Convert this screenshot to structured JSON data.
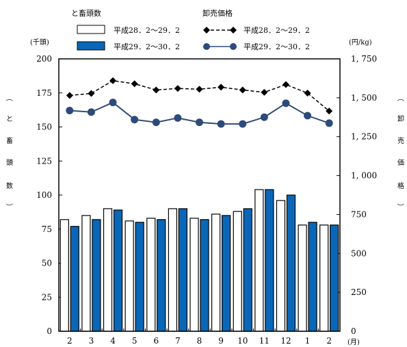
{
  "chart_data": {
    "type": "bar+line",
    "categories": [
      "2",
      "3",
      "4",
      "5",
      "6",
      "7",
      "8",
      "9",
      "10",
      "11",
      "12",
      "1",
      "2"
    ],
    "x_unit": "(月)",
    "left_axis": {
      "unit": "(千頭)",
      "label_chars": [
        "（",
        "と",
        "畜",
        "頭",
        "数",
        "）"
      ],
      "ylim": [
        0,
        200
      ],
      "ticks": [
        "0",
        "25",
        "50",
        "75",
        "100",
        "125",
        "150",
        "175",
        "200"
      ]
    },
    "right_axis": {
      "unit": "(円/kg)",
      "label_chars": [
        "（",
        "卸",
        "売",
        "価",
        "格",
        "）"
      ],
      "ylim": [
        0,
        1750
      ],
      "ticks": [
        "0",
        "250",
        "500",
        "750",
        "1, 000",
        "1, 250",
        "1, 500",
        "1, 750"
      ]
    },
    "bar_group_title": "と畜頭数",
    "line_group_title": "卸売価格",
    "bar_series": [
      {
        "name": "平成28．2～29．2",
        "color": "#ffffff",
        "values": [
          82,
          85,
          90,
          81,
          83,
          90,
          83,
          86,
          88,
          104,
          96,
          78,
          78
        ]
      },
      {
        "name": "平成29．2～30．2",
        "color": "#0a67b8",
        "values": [
          77,
          82,
          89,
          80,
          82,
          90,
          82,
          85,
          90,
          104,
          100,
          80,
          78
        ]
      }
    ],
    "line_series": [
      {
        "name": "平成28．2～29．2",
        "color": "#000000",
        "dashed": true,
        "marker": "diamond",
        "values": [
          1515,
          1528,
          1610,
          1590,
          1550,
          1560,
          1555,
          1568,
          1550,
          1535,
          1585,
          1530,
          1415
        ]
      },
      {
        "name": "平成29．2～30．2",
        "color": "#2d4b7a",
        "dashed": false,
        "marker": "circle",
        "values": [
          1418,
          1408,
          1470,
          1360,
          1342,
          1370,
          1342,
          1332,
          1332,
          1375,
          1465,
          1385,
          1337
        ]
      }
    ]
  }
}
